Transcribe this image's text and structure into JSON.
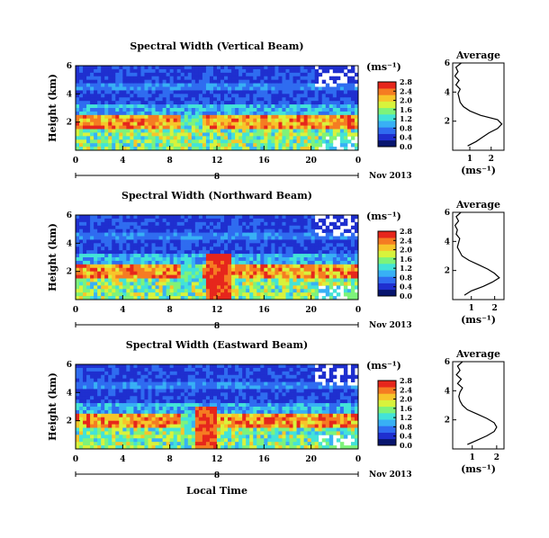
{
  "chart_data": {
    "type": "heatmap",
    "x_label": "Local Time",
    "date_label": "Nov 2013",
    "day_marker": "8",
    "x_ticks": [
      "0",
      "4",
      "8",
      "12",
      "16",
      "20",
      "0"
    ],
    "x_range": [
      0,
      24
    ],
    "y_label": "Height (km)",
    "y_ticks": [
      "6",
      "4",
      "2"
    ],
    "y_range": [
      0,
      6
    ],
    "colorbar": {
      "unit": "(ms⁻¹)",
      "ticks": [
        "2.8",
        "2.4",
        "2.0",
        "1.6",
        "1.2",
        "0.8",
        "0.4",
        "0.0"
      ],
      "range": [
        0.0,
        2.8
      ],
      "colors": [
        "#08156e",
        "#1f2fcf",
        "#2f6cf0",
        "#38b0f5",
        "#43e3d8",
        "#7ef37a",
        "#d8f33c",
        "#f7c52a",
        "#f57c22",
        "#e6261c"
      ]
    },
    "avg_title": "Average",
    "avg_xlabel": "(ms⁻¹)",
    "panels": [
      {
        "title": "Spectral Width (Vertical Beam)",
        "avg_ticks": [
          "1",
          "2"
        ],
        "avg_xlim": [
          0.2,
          2.6
        ],
        "avg_profile": {
          "height": [
            0.3,
            0.6,
            0.9,
            1.2,
            1.5,
            1.8,
            2.1,
            2.4,
            2.7,
            3.0,
            3.3,
            3.6,
            3.9,
            4.2,
            4.5,
            4.8,
            5.1,
            5.4,
            5.7,
            6.0
          ],
          "width": [
            0.9,
            1.3,
            1.6,
            1.9,
            2.3,
            2.5,
            2.3,
            1.5,
            1.0,
            0.7,
            0.55,
            0.5,
            0.45,
            0.55,
            0.35,
            0.5,
            0.3,
            0.45,
            0.35,
            0.6
          ]
        }
      },
      {
        "title": "Spectral Width (Northward Beam)",
        "avg_ticks": [
          "1",
          "2"
        ],
        "avg_xlim": [
          0.2,
          2.4
        ],
        "avg_profile": {
          "height": [
            0.3,
            0.6,
            0.9,
            1.2,
            1.5,
            1.8,
            2.1,
            2.4,
            2.7,
            3.0,
            3.3,
            3.6,
            3.9,
            4.2,
            4.5,
            4.8,
            5.1,
            5.4,
            5.7,
            6.0
          ],
          "width": [
            0.7,
            1.0,
            1.5,
            1.9,
            2.2,
            2.0,
            1.7,
            1.3,
            0.9,
            0.6,
            0.5,
            0.4,
            0.45,
            0.5,
            0.35,
            0.4,
            0.3,
            0.45,
            0.35,
            0.55
          ]
        }
      },
      {
        "title": "Spectral Width (Eastward Beam)",
        "avg_ticks": [
          "1",
          "2"
        ],
        "avg_xlim": [
          0.2,
          2.3
        ],
        "avg_profile": {
          "height": [
            0.3,
            0.6,
            0.9,
            1.2,
            1.5,
            1.8,
            2.1,
            2.4,
            2.7,
            3.0,
            3.3,
            3.6,
            3.9,
            4.2,
            4.5,
            4.8,
            5.1,
            5.4,
            5.7,
            6.0
          ],
          "width": [
            0.8,
            1.2,
            1.6,
            1.9,
            2.0,
            1.9,
            1.6,
            1.2,
            0.8,
            0.6,
            0.5,
            0.45,
            0.5,
            0.6,
            0.4,
            0.55,
            0.35,
            0.5,
            0.4,
            0.6
          ]
        }
      }
    ]
  }
}
